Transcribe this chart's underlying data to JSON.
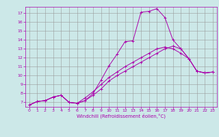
{
  "xlabel": "Windchill (Refroidissement éolien,°C)",
  "bg_color": "#cce8e8",
  "line_color": "#aa00aa",
  "grid_color": "#999999",
  "xlim": [
    -0.5,
    23.5
  ],
  "ylim": [
    6.5,
    17.7
  ],
  "xticks": [
    0,
    1,
    2,
    3,
    4,
    5,
    6,
    7,
    8,
    9,
    10,
    11,
    12,
    13,
    14,
    15,
    16,
    17,
    18,
    19,
    20,
    21,
    22,
    23
  ],
  "yticks": [
    7,
    8,
    9,
    10,
    11,
    12,
    13,
    14,
    15,
    16,
    17
  ],
  "series": [
    [
      6.7,
      7.1,
      7.2,
      7.6,
      7.8,
      7.0,
      6.9,
      7.2,
      8.0,
      9.5,
      11.1,
      12.4,
      13.8,
      13.9,
      17.1,
      17.2,
      17.5,
      16.5,
      14.0,
      13.0,
      11.9,
      10.5,
      10.3,
      10.4
    ],
    [
      6.7,
      7.1,
      7.2,
      7.6,
      7.8,
      7.0,
      6.9,
      7.2,
      7.8,
      8.5,
      9.4,
      10.0,
      10.5,
      11.0,
      11.5,
      12.0,
      12.5,
      13.0,
      13.3,
      13.0,
      11.9,
      10.5,
      10.3,
      10.4
    ],
    [
      6.7,
      7.1,
      7.2,
      7.6,
      7.8,
      7.0,
      6.9,
      7.5,
      8.2,
      9.0,
      9.8,
      10.4,
      11.0,
      11.5,
      12.0,
      12.5,
      13.0,
      13.2,
      13.0,
      12.5,
      11.9,
      10.5,
      10.3,
      10.4
    ]
  ]
}
